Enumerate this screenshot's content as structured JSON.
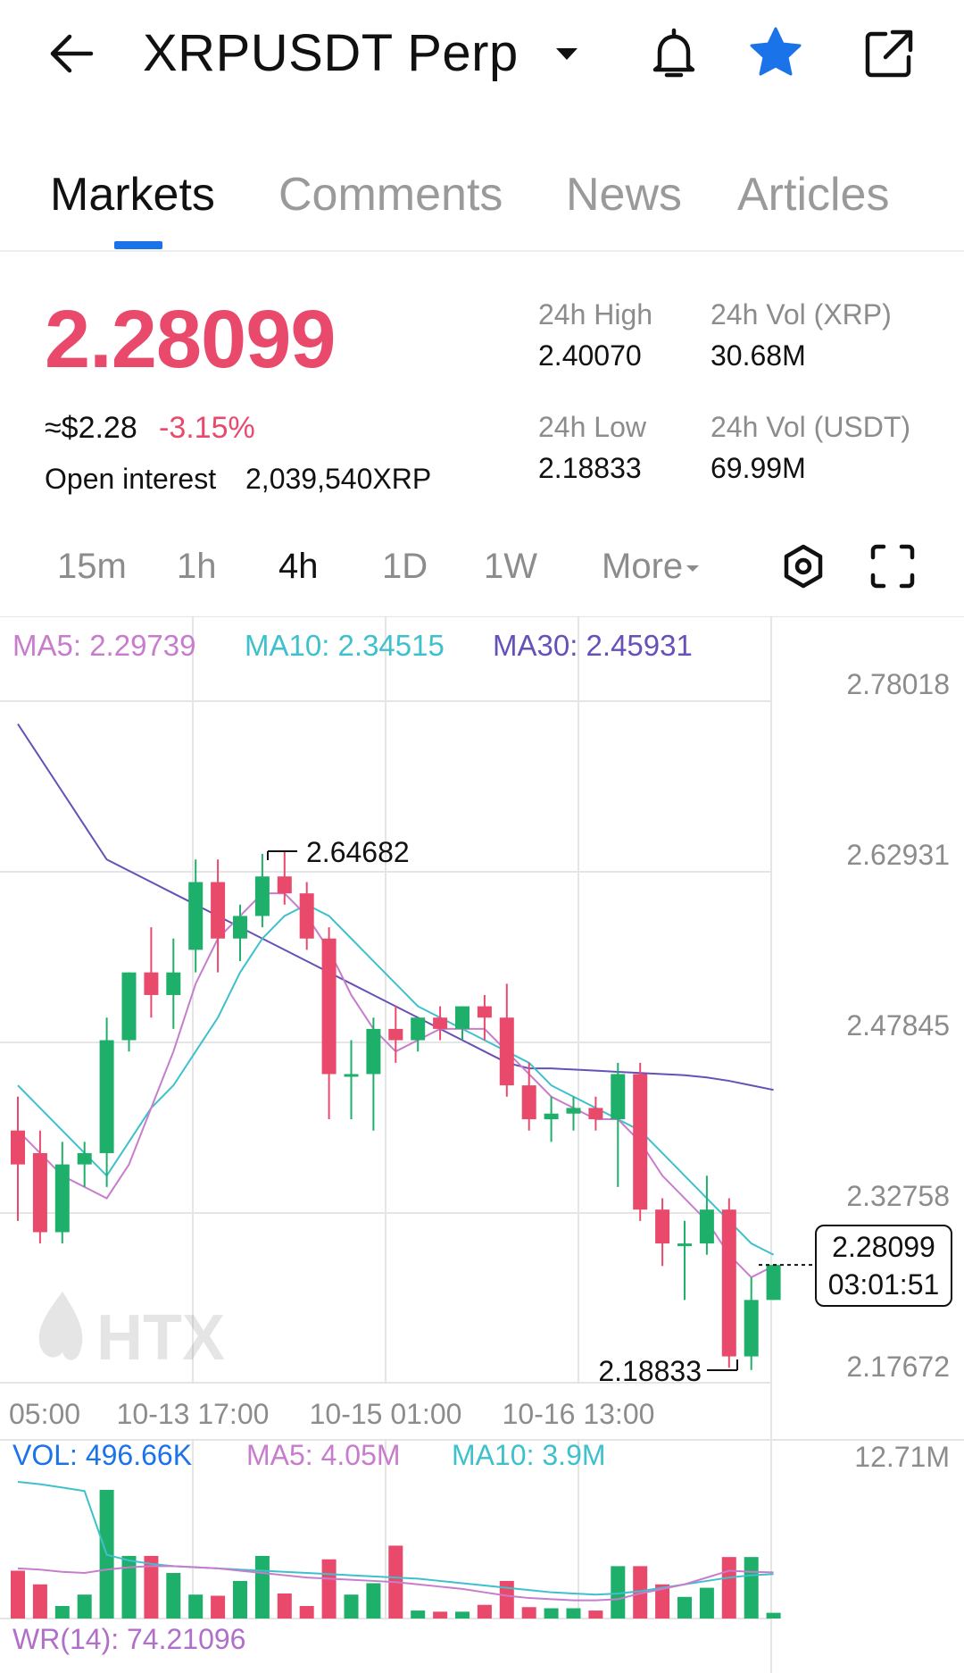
{
  "header": {
    "title": "XRPUSDT Perp",
    "colors": {
      "accent": "#1a73e8",
      "star": "#1a73e8"
    },
    "icons": [
      "back-arrow-icon",
      "caret-down-icon",
      "bell-icon",
      "star-icon",
      "share-icon"
    ]
  },
  "tabs": [
    {
      "label": "Markets",
      "active": true
    },
    {
      "label": "Comments",
      "active": false
    },
    {
      "label": "News",
      "active": false
    },
    {
      "label": "Articles",
      "active": false
    }
  ],
  "ticker": {
    "price": "2.28099",
    "approx_usd": "≈$2.28",
    "change_pct": "-3.15%",
    "open_interest_label": "Open interest",
    "open_interest_value": "2,039,540XRP",
    "colors": {
      "down": "#e94a6b",
      "up": "#1eb06a"
    }
  },
  "stats": {
    "high_label": "24h High",
    "high_value": "2.40070",
    "low_label": "24h Low",
    "low_value": "2.18833",
    "vol_xrp_label": "24h Vol (XRP)",
    "vol_xrp_value": "30.68M",
    "vol_usdt_label": "24h Vol (USDT)",
    "vol_usdt_value": "69.99M"
  },
  "intervals": [
    {
      "label": "15m",
      "active": false
    },
    {
      "label": "1h",
      "active": false
    },
    {
      "label": "4h",
      "active": true
    },
    {
      "label": "1D",
      "active": false
    },
    {
      "label": "1W",
      "active": false
    },
    {
      "label": "More",
      "active": false
    }
  ],
  "indicators": {
    "ma5": "MA5: 2.29739",
    "ma10": "MA10: 2.34515",
    "ma30": "MA30: 2.45931",
    "vol": "VOL: 496.66K",
    "vol_ma5": "MA5: 4.05M",
    "vol_ma10": "MA10: 3.9M",
    "wr": "WR(14): 74.21096",
    "colors": {
      "ma5": "#c77dcc",
      "ma10": "#3ec1cc",
      "ma30": "#6750b8",
      "vol": "#1a73e8"
    }
  },
  "last_price_tag": {
    "price": "2.28099",
    "countdown": "03:01:51"
  },
  "watermark": "HTX",
  "chart_data": {
    "type": "candlestick",
    "y_ticks": [
      "2.78018",
      "2.62931",
      "2.47845",
      "2.32758",
      "2.17672"
    ],
    "y_range": [
      2.1,
      2.84
    ],
    "x_ticks": [
      "05:00",
      "10-13 17:00",
      "10-15 01:00",
      "10-16 13:00"
    ],
    "high_marker": "2.64682",
    "low_marker": "2.18833",
    "vol_axis_max": "12.71M",
    "candles": [
      {
        "o": 2.4,
        "h": 2.43,
        "c": 2.37,
        "l": 2.32
      },
      {
        "o": 2.38,
        "h": 2.4,
        "c": 2.31,
        "l": 2.3
      },
      {
        "o": 2.31,
        "h": 2.39,
        "c": 2.37,
        "l": 2.3
      },
      {
        "o": 2.37,
        "h": 2.39,
        "c": 2.38,
        "l": 2.35
      },
      {
        "o": 2.38,
        "h": 2.5,
        "c": 2.48,
        "l": 2.35
      },
      {
        "o": 2.48,
        "h": 2.54,
        "c": 2.54,
        "l": 2.47
      },
      {
        "o": 2.54,
        "h": 2.58,
        "c": 2.52,
        "l": 2.5
      },
      {
        "o": 2.52,
        "h": 2.57,
        "c": 2.54,
        "l": 2.49
      },
      {
        "o": 2.56,
        "h": 2.64,
        "c": 2.62,
        "l": 2.54
      },
      {
        "o": 2.62,
        "h": 2.64,
        "c": 2.57,
        "l": 2.54
      },
      {
        "o": 2.57,
        "h": 2.6,
        "c": 2.59,
        "l": 2.55
      },
      {
        "o": 2.59,
        "h": 2.645,
        "c": 2.625,
        "l": 2.58
      },
      {
        "o": 2.625,
        "h": 2.647,
        "c": 2.61,
        "l": 2.6
      },
      {
        "o": 2.61,
        "h": 2.62,
        "c": 2.57,
        "l": 2.56
      },
      {
        "o": 2.57,
        "h": 2.58,
        "c": 2.45,
        "l": 2.41
      },
      {
        "o": 2.45,
        "h": 2.48,
        "c": 2.45,
        "l": 2.41
      },
      {
        "o": 2.45,
        "h": 2.5,
        "c": 2.49,
        "l": 2.4
      },
      {
        "o": 2.49,
        "h": 2.51,
        "c": 2.48,
        "l": 2.46
      },
      {
        "o": 2.48,
        "h": 2.5,
        "c": 2.5,
        "l": 2.47
      },
      {
        "o": 2.5,
        "h": 2.51,
        "c": 2.49,
        "l": 2.48
      },
      {
        "o": 2.49,
        "h": 2.51,
        "c": 2.51,
        "l": 2.48
      },
      {
        "o": 2.51,
        "h": 2.52,
        "c": 2.5,
        "l": 2.48
      },
      {
        "o": 2.5,
        "h": 2.53,
        "c": 2.44,
        "l": 2.43
      },
      {
        "o": 2.44,
        "h": 2.46,
        "c": 2.41,
        "l": 2.4
      },
      {
        "o": 2.41,
        "h": 2.43,
        "c": 2.415,
        "l": 2.39
      },
      {
        "o": 2.415,
        "h": 2.43,
        "c": 2.42,
        "l": 2.4
      },
      {
        "o": 2.42,
        "h": 2.43,
        "c": 2.41,
        "l": 2.4
      },
      {
        "o": 2.41,
        "h": 2.46,
        "c": 2.45,
        "l": 2.35
      },
      {
        "o": 2.45,
        "h": 2.46,
        "c": 2.33,
        "l": 2.32
      },
      {
        "o": 2.33,
        "h": 2.34,
        "c": 2.3,
        "l": 2.28
      },
      {
        "o": 2.3,
        "h": 2.32,
        "c": 2.3,
        "l": 2.25
      },
      {
        "o": 2.3,
        "h": 2.36,
        "c": 2.33,
        "l": 2.29
      },
      {
        "o": 2.33,
        "h": 2.34,
        "c": 2.2,
        "l": 2.19
      },
      {
        "o": 2.2,
        "h": 2.27,
        "c": 2.25,
        "l": 2.188
      },
      {
        "o": 2.25,
        "h": 2.28,
        "c": 2.281,
        "l": 2.25
      }
    ],
    "ma30": [
      2.76,
      2.73,
      2.7,
      2.67,
      2.64,
      2.63,
      2.62,
      2.61,
      2.6,
      2.59,
      2.58,
      2.57,
      2.56,
      2.55,
      2.54,
      2.53,
      2.52,
      2.51,
      2.5,
      2.49,
      2.48,
      2.47,
      2.46,
      2.455,
      2.455,
      2.454,
      2.453,
      2.452,
      2.451,
      2.45,
      2.449,
      2.447,
      2.444,
      2.44,
      2.436
    ],
    "ma10": [
      2.44,
      2.42,
      2.4,
      2.38,
      2.36,
      2.39,
      2.42,
      2.44,
      2.47,
      2.5,
      2.54,
      2.57,
      2.59,
      2.6,
      2.59,
      2.57,
      2.55,
      2.53,
      2.51,
      2.5,
      2.49,
      2.48,
      2.47,
      2.46,
      2.44,
      2.43,
      2.42,
      2.41,
      2.4,
      2.38,
      2.36,
      2.34,
      2.32,
      2.3,
      2.29
    ],
    "ma5": [
      2.4,
      2.38,
      2.36,
      2.35,
      2.34,
      2.37,
      2.42,
      2.47,
      2.53,
      2.57,
      2.59,
      2.61,
      2.61,
      2.59,
      2.56,
      2.52,
      2.49,
      2.47,
      2.48,
      2.49,
      2.49,
      2.49,
      2.47,
      2.45,
      2.43,
      2.42,
      2.41,
      2.41,
      2.39,
      2.36,
      2.34,
      2.32,
      2.29,
      2.27,
      2.28
    ],
    "volume": [
      4.2,
      3.0,
      1.1,
      2.1,
      11.3,
      5.5,
      5.5,
      4.0,
      2.1,
      2.0,
      3.3,
      5.5,
      2.2,
      1.1,
      5.2,
      2.1,
      3.1,
      6.4,
      0.7,
      0.6,
      0.6,
      1.2,
      3.3,
      1.0,
      0.9,
      0.9,
      0.7,
      4.6,
      4.6,
      3.0,
      1.9,
      2.7,
      5.4,
      5.4,
      0.5
    ],
    "vol_ma5": [
      4.4,
      4.3,
      4.1,
      4.0,
      4.3,
      4.5,
      4.6,
      4.6,
      4.5,
      4.4,
      4.2,
      4.0,
      3.8,
      3.6,
      3.5,
      3.4,
      3.3,
      3.2,
      3.0,
      2.8,
      2.6,
      2.3,
      2.0,
      1.8,
      1.7,
      1.6,
      1.6,
      1.7,
      2.2,
      2.6,
      3.0,
      3.6,
      4.2,
      4.1,
      4.05
    ],
    "vol_ma10": [
      12.0,
      11.8,
      11.5,
      11.2,
      5.6,
      5.1,
      4.8,
      4.6,
      4.5,
      4.4,
      4.3,
      4.2,
      4.1,
      4.0,
      3.9,
      3.8,
      3.7,
      3.6,
      3.5,
      3.3,
      3.1,
      2.9,
      2.7,
      2.5,
      2.3,
      2.2,
      2.1,
      2.2,
      2.4,
      2.7,
      3.0,
      3.3,
      3.6,
      3.8,
      3.9
    ]
  }
}
